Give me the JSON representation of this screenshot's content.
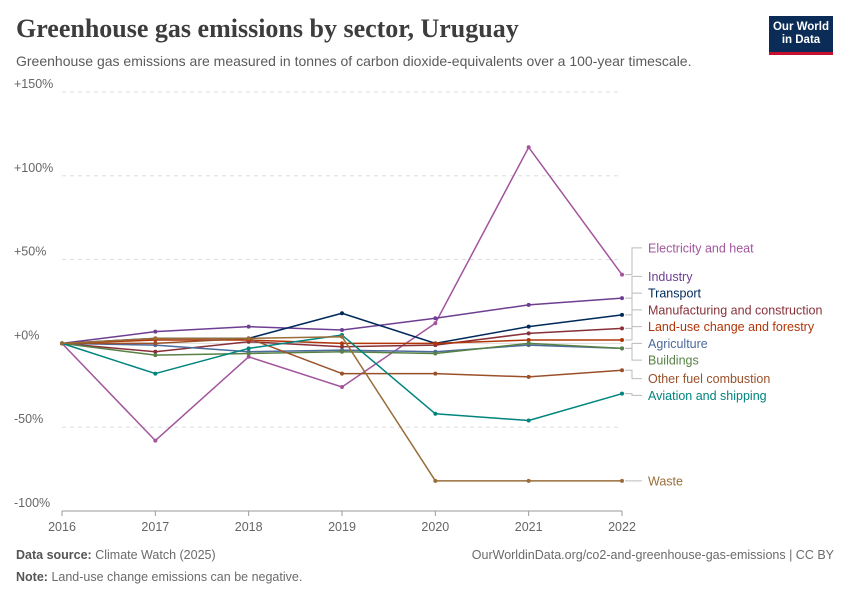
{
  "header": {
    "title": "Greenhouse gas emissions by sector, Uruguay",
    "subtitle": "Greenhouse gas emissions are measured in tonnes of carbon dioxide-equivalents over a 100-year timescale.",
    "logo_line1": "Our World",
    "logo_line2": "in Data"
  },
  "footer": {
    "source_label": "Data source:",
    "source_value": "Climate Watch (2025)",
    "note_label": "Note:",
    "note_value": "Land-use change emissions can be negative.",
    "url": "OurWorldinData.org/co2-and-greenhouse-gas-emissions | CC BY"
  },
  "colors": {
    "brand": "#0b2c57",
    "accent": "#c8102e",
    "grid": "#dddddd"
  },
  "chart_data": {
    "type": "line",
    "x": [
      2016,
      2017,
      2018,
      2019,
      2020,
      2021,
      2022
    ],
    "y_ticks": [
      "+150%",
      "+100%",
      "+50%",
      "+0%",
      "-50%",
      "-100%"
    ],
    "y_tick_values": [
      150,
      100,
      50,
      0,
      -50,
      -100
    ],
    "ylim": [
      -100,
      150
    ],
    "grid": true,
    "legend_placement": "right, at line ends",
    "series": [
      {
        "name": "Electricity and heat",
        "color": "#a2559c",
        "values": [
          0,
          -58,
          -8,
          -26,
          12,
          117,
          41
        ]
      },
      {
        "name": "Industry",
        "color": "#6d3e91",
        "values": [
          0,
          7,
          10,
          8,
          15,
          23,
          27
        ]
      },
      {
        "name": "Transport",
        "color": "#00295b",
        "values": [
          0,
          3,
          3,
          18,
          0,
          10,
          17
        ]
      },
      {
        "name": "Manufacturing and construction",
        "color": "#883039",
        "values": [
          0,
          -5,
          1,
          -2,
          -1,
          6,
          9
        ]
      },
      {
        "name": "Land-use change and forestry",
        "color": "#b13507",
        "values": [
          0,
          2,
          2,
          0,
          0,
          2,
          2
        ]
      },
      {
        "name": "Agriculture",
        "color": "#4c6a9c",
        "values": [
          0,
          -1,
          -5,
          -4,
          -5,
          -1,
          -3
        ]
      },
      {
        "name": "Buildings",
        "color": "#578145",
        "values": [
          0,
          -7,
          -6,
          -5,
          -6,
          0,
          -3
        ]
      },
      {
        "name": "Other fuel combustion",
        "color": "#9a5129",
        "values": [
          0,
          0,
          3,
          -18,
          -18,
          -20,
          -16
        ]
      },
      {
        "name": "Aviation and shipping",
        "color": "#00847e",
        "values": [
          0,
          -18,
          -3,
          5,
          -42,
          -46,
          -30
        ]
      },
      {
        "name": "Waste",
        "color": "#996d39",
        "values": [
          0,
          3,
          3,
          4,
          -82,
          -82,
          -82
        ]
      }
    ],
    "legend_values_y": [
      57,
      40,
      30,
      20,
      10,
      0,
      -10,
      -21,
      -31,
      -82
    ]
  }
}
